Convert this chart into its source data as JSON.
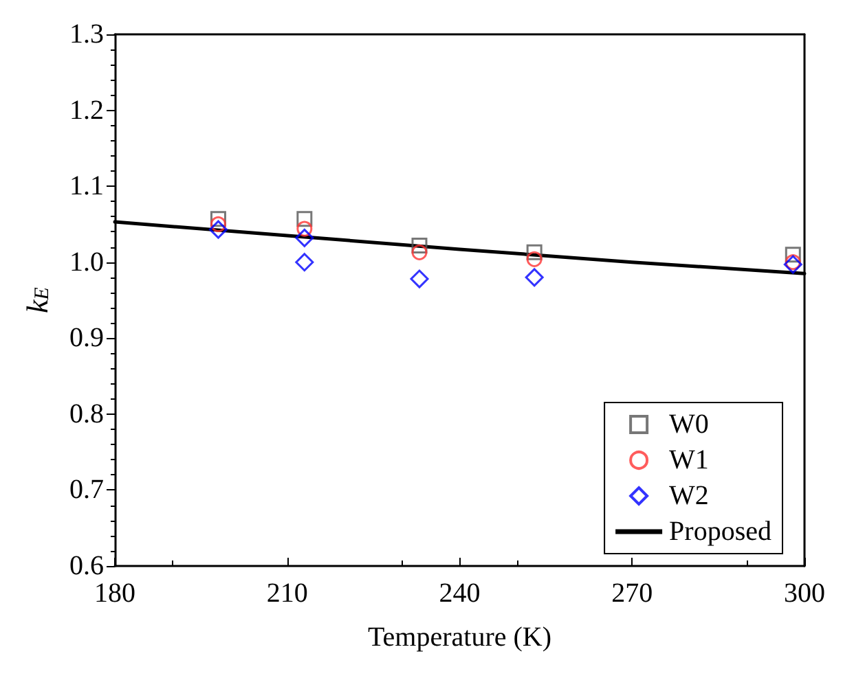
{
  "chart_data": {
    "type": "scatter",
    "xlabel": "Temperature (K)",
    "ylabel": "k$_{E}$",
    "xlim": [
      180,
      300
    ],
    "xticks": [
      180,
      210,
      240,
      270,
      300
    ],
    "ylim": [
      0.6,
      1.3
    ],
    "yticks": [
      {
        "value": 0.6,
        "label": "0.6"
      },
      {
        "value": 0.7,
        "label": "0.7"
      },
      {
        "value": 0.8,
        "label": "0.8"
      },
      {
        "value": 0.9,
        "label": "0.9"
      },
      {
        "value": 1,
        "label": "1.0"
      },
      {
        "value": 1.1,
        "label": "1.1"
      },
      {
        "value": 1.2,
        "label": "1.2"
      },
      {
        "value": 1.3,
        "label": "1.3"
      }
    ],
    "grid": false,
    "legend": "bottom right",
    "series": [
      {
        "name": "W0",
        "color": "#555555",
        "marker": "square",
        "x": [
          198,
          213,
          233,
          253,
          298
        ],
        "values": [
          1.057,
          1.057,
          1.022,
          1.013,
          1.01
        ]
      },
      {
        "name": "W1",
        "color": "#ff3333",
        "marker": "circle",
        "x": [
          198,
          213,
          233,
          253,
          298
        ],
        "values": [
          1.05,
          1.044,
          1.013,
          1.004,
          1.0
        ]
      },
      {
        "name": "W2",
        "color": "#0000ff",
        "marker": "diamond",
        "x": [
          198,
          213,
          213,
          233,
          253,
          298
        ],
        "values": [
          1.043,
          1.032,
          1.0,
          0.978,
          0.98,
          0.997
        ]
      },
      {
        "name": "Proposed",
        "type": "line",
        "color": "#000000",
        "marker": "none",
        "line_style": "solid",
        "x": [
          180,
          210,
          240,
          270,
          300
        ],
        "values": [
          1.053,
          1.035,
          1.017,
          1.0,
          0.985
        ]
      }
    ]
  }
}
